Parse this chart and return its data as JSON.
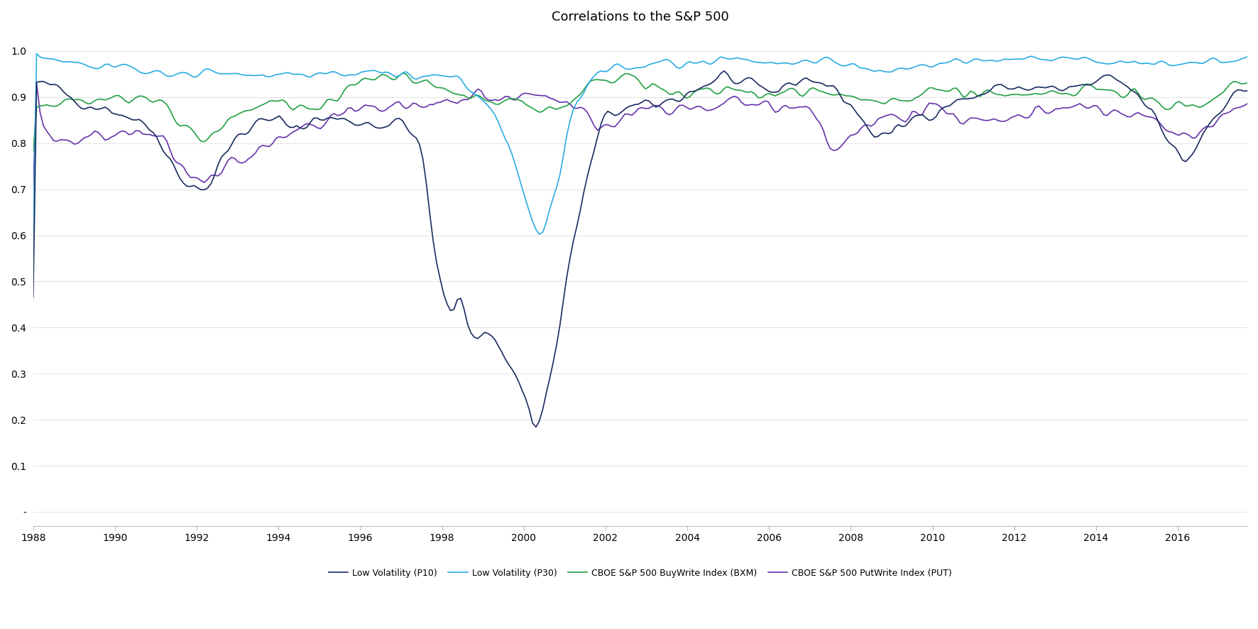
{
  "title": "Correlations to the S&P 500",
  "title_fontsize": 13,
  "colors": {
    "p10": "#1a2b5f",
    "p30": "#29abe2",
    "bxm": "#22a045",
    "put": "#6633aa"
  },
  "labels": {
    "p10": "Low Volatility (P10)",
    "p30": "Low Volatility (P30)",
    "bxm": "CBOE S&P 500 BuyWrite Index (BXM)",
    "put": "CBOE S&P 500 PutWrite Index (PUT)"
  },
  "xlim": [
    1988,
    2017.7
  ],
  "ylim": [
    -0.03,
    1.04
  ],
  "yticks": [
    0.0,
    0.1,
    0.2,
    0.3,
    0.4,
    0.5,
    0.6,
    0.7,
    0.8,
    0.9,
    1.0
  ],
  "ytick_labels": [
    "-",
    "0.1",
    "0.2",
    "0.3",
    "0.4",
    "0.5",
    "0.6",
    "0.7",
    "0.8",
    "0.9",
    "1.0"
  ],
  "xticks": [
    1988,
    1990,
    1992,
    1994,
    1996,
    1998,
    2000,
    2002,
    2004,
    2006,
    2008,
    2010,
    2012,
    2014,
    2016
  ],
  "line_width": 1.2,
  "background_color": "#ffffff",
  "legend_fontsize": 9,
  "tick_fontsize": 10
}
